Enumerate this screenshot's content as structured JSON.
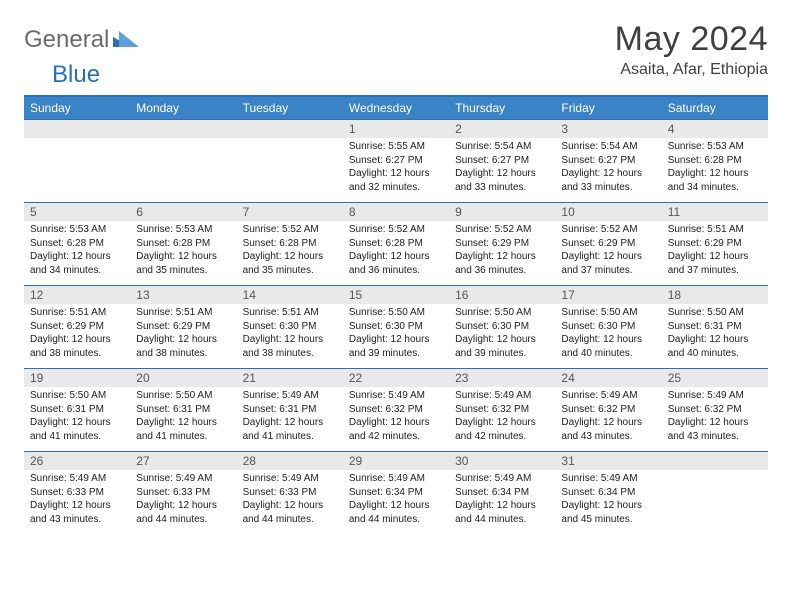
{
  "brand": {
    "part1": "General",
    "part2": "Blue"
  },
  "title": "May 2024",
  "location": "Asaita, Afar, Ethiopia",
  "weekday_labels": [
    "Sunday",
    "Monday",
    "Tuesday",
    "Wednesday",
    "Thursday",
    "Friday",
    "Saturday"
  ],
  "colors": {
    "header_bg": "#3a83c6",
    "header_border": "#2b6fb5",
    "daynum_bg": "#e9e9e9",
    "text": "#222222",
    "title_text": "#404040"
  },
  "weeks": [
    [
      {
        "day": "",
        "lines": []
      },
      {
        "day": "",
        "lines": []
      },
      {
        "day": "",
        "lines": []
      },
      {
        "day": "1",
        "lines": [
          "Sunrise: 5:55 AM",
          "Sunset: 6:27 PM",
          "Daylight: 12 hours",
          "and 32 minutes."
        ]
      },
      {
        "day": "2",
        "lines": [
          "Sunrise: 5:54 AM",
          "Sunset: 6:27 PM",
          "Daylight: 12 hours",
          "and 33 minutes."
        ]
      },
      {
        "day": "3",
        "lines": [
          "Sunrise: 5:54 AM",
          "Sunset: 6:27 PM",
          "Daylight: 12 hours",
          "and 33 minutes."
        ]
      },
      {
        "day": "4",
        "lines": [
          "Sunrise: 5:53 AM",
          "Sunset: 6:28 PM",
          "Daylight: 12 hours",
          "and 34 minutes."
        ]
      }
    ],
    [
      {
        "day": "5",
        "lines": [
          "Sunrise: 5:53 AM",
          "Sunset: 6:28 PM",
          "Daylight: 12 hours",
          "and 34 minutes."
        ]
      },
      {
        "day": "6",
        "lines": [
          "Sunrise: 5:53 AM",
          "Sunset: 6:28 PM",
          "Daylight: 12 hours",
          "and 35 minutes."
        ]
      },
      {
        "day": "7",
        "lines": [
          "Sunrise: 5:52 AM",
          "Sunset: 6:28 PM",
          "Daylight: 12 hours",
          "and 35 minutes."
        ]
      },
      {
        "day": "8",
        "lines": [
          "Sunrise: 5:52 AM",
          "Sunset: 6:28 PM",
          "Daylight: 12 hours",
          "and 36 minutes."
        ]
      },
      {
        "day": "9",
        "lines": [
          "Sunrise: 5:52 AM",
          "Sunset: 6:29 PM",
          "Daylight: 12 hours",
          "and 36 minutes."
        ]
      },
      {
        "day": "10",
        "lines": [
          "Sunrise: 5:52 AM",
          "Sunset: 6:29 PM",
          "Daylight: 12 hours",
          "and 37 minutes."
        ]
      },
      {
        "day": "11",
        "lines": [
          "Sunrise: 5:51 AM",
          "Sunset: 6:29 PM",
          "Daylight: 12 hours",
          "and 37 minutes."
        ]
      }
    ],
    [
      {
        "day": "12",
        "lines": [
          "Sunrise: 5:51 AM",
          "Sunset: 6:29 PM",
          "Daylight: 12 hours",
          "and 38 minutes."
        ]
      },
      {
        "day": "13",
        "lines": [
          "Sunrise: 5:51 AM",
          "Sunset: 6:29 PM",
          "Daylight: 12 hours",
          "and 38 minutes."
        ]
      },
      {
        "day": "14",
        "lines": [
          "Sunrise: 5:51 AM",
          "Sunset: 6:30 PM",
          "Daylight: 12 hours",
          "and 38 minutes."
        ]
      },
      {
        "day": "15",
        "lines": [
          "Sunrise: 5:50 AM",
          "Sunset: 6:30 PM",
          "Daylight: 12 hours",
          "and 39 minutes."
        ]
      },
      {
        "day": "16",
        "lines": [
          "Sunrise: 5:50 AM",
          "Sunset: 6:30 PM",
          "Daylight: 12 hours",
          "and 39 minutes."
        ]
      },
      {
        "day": "17",
        "lines": [
          "Sunrise: 5:50 AM",
          "Sunset: 6:30 PM",
          "Daylight: 12 hours",
          "and 40 minutes."
        ]
      },
      {
        "day": "18",
        "lines": [
          "Sunrise: 5:50 AM",
          "Sunset: 6:31 PM",
          "Daylight: 12 hours",
          "and 40 minutes."
        ]
      }
    ],
    [
      {
        "day": "19",
        "lines": [
          "Sunrise: 5:50 AM",
          "Sunset: 6:31 PM",
          "Daylight: 12 hours",
          "and 41 minutes."
        ]
      },
      {
        "day": "20",
        "lines": [
          "Sunrise: 5:50 AM",
          "Sunset: 6:31 PM",
          "Daylight: 12 hours",
          "and 41 minutes."
        ]
      },
      {
        "day": "21",
        "lines": [
          "Sunrise: 5:49 AM",
          "Sunset: 6:31 PM",
          "Daylight: 12 hours",
          "and 41 minutes."
        ]
      },
      {
        "day": "22",
        "lines": [
          "Sunrise: 5:49 AM",
          "Sunset: 6:32 PM",
          "Daylight: 12 hours",
          "and 42 minutes."
        ]
      },
      {
        "day": "23",
        "lines": [
          "Sunrise: 5:49 AM",
          "Sunset: 6:32 PM",
          "Daylight: 12 hours",
          "and 42 minutes."
        ]
      },
      {
        "day": "24",
        "lines": [
          "Sunrise: 5:49 AM",
          "Sunset: 6:32 PM",
          "Daylight: 12 hours",
          "and 43 minutes."
        ]
      },
      {
        "day": "25",
        "lines": [
          "Sunrise: 5:49 AM",
          "Sunset: 6:32 PM",
          "Daylight: 12 hours",
          "and 43 minutes."
        ]
      }
    ],
    [
      {
        "day": "26",
        "lines": [
          "Sunrise: 5:49 AM",
          "Sunset: 6:33 PM",
          "Daylight: 12 hours",
          "and 43 minutes."
        ]
      },
      {
        "day": "27",
        "lines": [
          "Sunrise: 5:49 AM",
          "Sunset: 6:33 PM",
          "Daylight: 12 hours",
          "and 44 minutes."
        ]
      },
      {
        "day": "28",
        "lines": [
          "Sunrise: 5:49 AM",
          "Sunset: 6:33 PM",
          "Daylight: 12 hours",
          "and 44 minutes."
        ]
      },
      {
        "day": "29",
        "lines": [
          "Sunrise: 5:49 AM",
          "Sunset: 6:34 PM",
          "Daylight: 12 hours",
          "and 44 minutes."
        ]
      },
      {
        "day": "30",
        "lines": [
          "Sunrise: 5:49 AM",
          "Sunset: 6:34 PM",
          "Daylight: 12 hours",
          "and 44 minutes."
        ]
      },
      {
        "day": "31",
        "lines": [
          "Sunrise: 5:49 AM",
          "Sunset: 6:34 PM",
          "Daylight: 12 hours",
          "and 45 minutes."
        ]
      },
      {
        "day": "",
        "lines": []
      }
    ]
  ]
}
